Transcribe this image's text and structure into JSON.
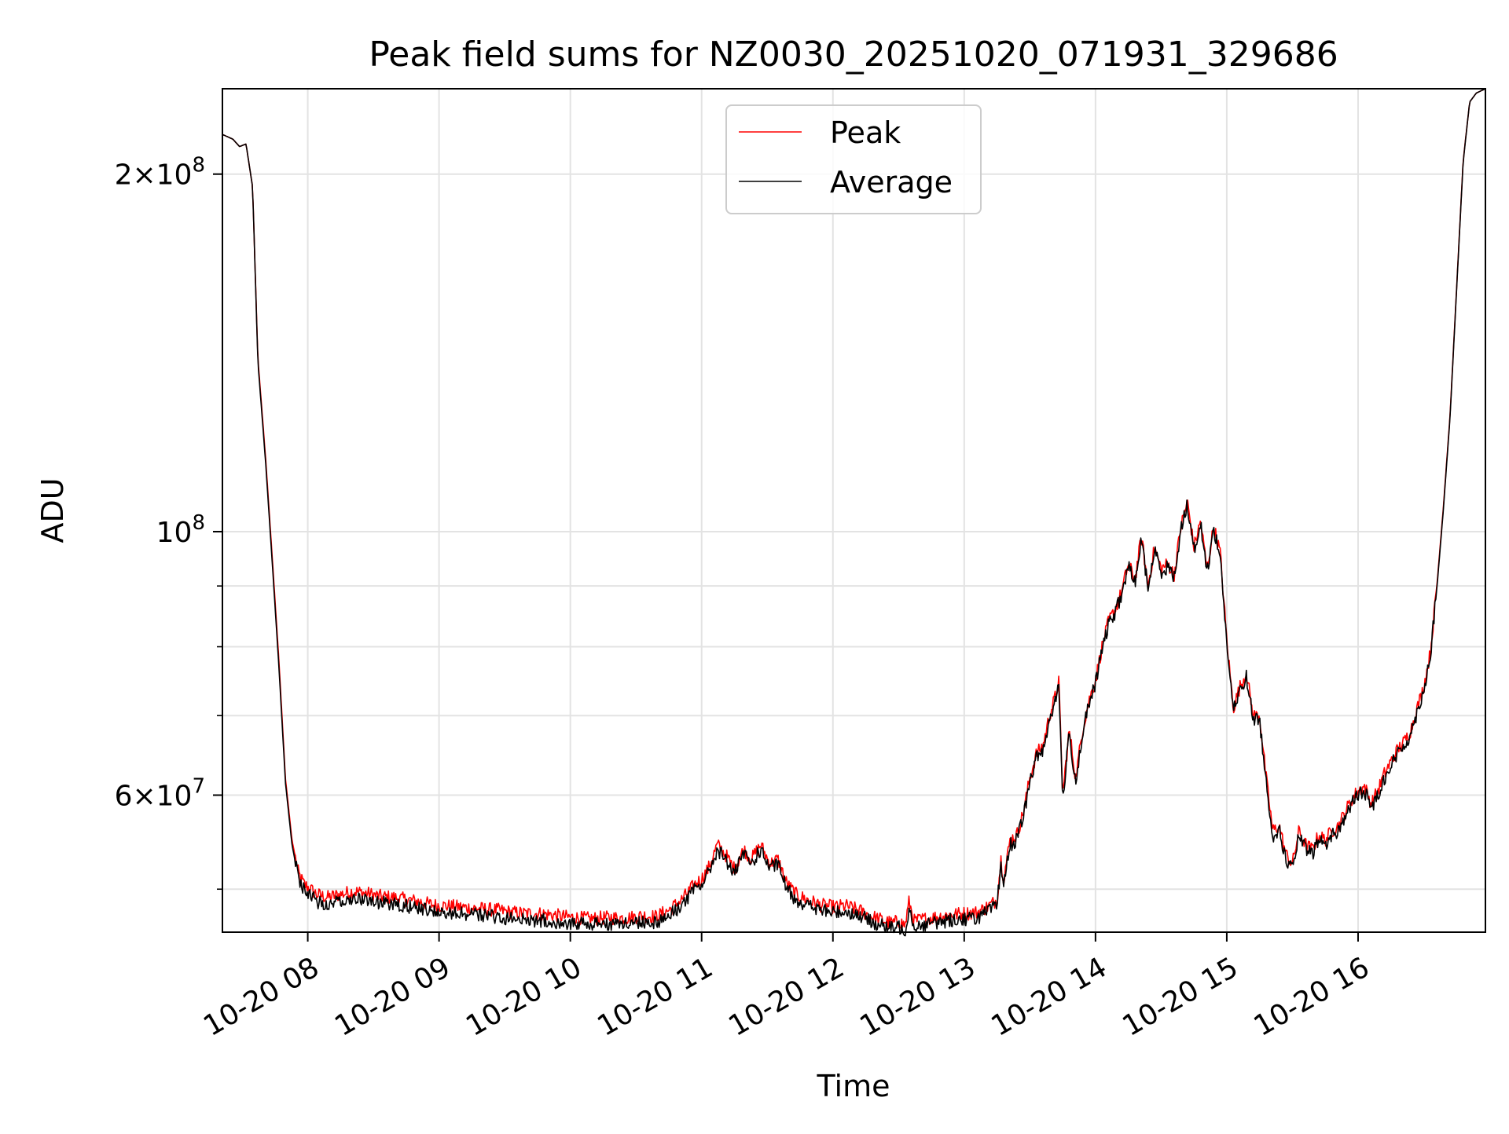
{
  "chart_data": {
    "type": "line",
    "title": "Peak field sums for NZ0030_20251020_071931_329686",
    "xlabel": "Time",
    "ylabel": "ADU",
    "yscale": "log",
    "xlim": [
      7.35,
      16.97
    ],
    "ylim": [
      46000000,
      236000000
    ],
    "grid": true,
    "legend_location": "upper center",
    "x_ticks": [
      {
        "value": 8,
        "label": "10-20 08"
      },
      {
        "value": 9,
        "label": "10-20 09"
      },
      {
        "value": 10,
        "label": "10-20 10"
      },
      {
        "value": 11,
        "label": "10-20 11"
      },
      {
        "value": 12,
        "label": "10-20 12"
      },
      {
        "value": 13,
        "label": "10-20 13"
      },
      {
        "value": 14,
        "label": "10-20 14"
      },
      {
        "value": 15,
        "label": "10-20 15"
      },
      {
        "value": 16,
        "label": "10-20 16"
      }
    ],
    "y_major_ticks": [
      {
        "value": 60000000,
        "base": "6",
        "exp": "7"
      },
      {
        "value": 100000000,
        "base": "",
        "exp": "8"
      },
      {
        "value": 200000000,
        "base": "2",
        "exp": "8"
      }
    ],
    "y_minor_ticks": [
      50000000,
      70000000,
      80000000,
      90000000
    ],
    "series": [
      {
        "name": "Peak",
        "color": "#ff0000",
        "x": [
          7.35,
          7.43,
          7.48,
          7.53,
          7.58,
          7.62,
          7.68,
          7.73,
          7.78,
          7.83,
          7.88,
          7.93,
          7.97,
          8.02,
          8.07,
          8.15,
          8.25,
          8.35,
          8.45,
          8.55,
          8.65,
          8.75,
          8.85,
          8.95,
          9.05,
          9.15,
          9.25,
          9.35,
          9.45,
          9.55,
          9.65,
          9.75,
          9.85,
          9.95,
          10.05,
          10.15,
          10.25,
          10.35,
          10.45,
          10.55,
          10.65,
          10.75,
          10.85,
          10.95,
          11.0,
          11.05,
          11.12,
          11.18,
          11.25,
          11.32,
          11.38,
          11.45,
          11.52,
          11.58,
          11.65,
          11.72,
          11.8,
          11.9,
          12.0,
          12.1,
          12.2,
          12.3,
          12.4,
          12.45,
          12.5,
          12.55,
          12.58,
          12.62,
          12.7,
          12.8,
          12.9,
          13.0,
          13.1,
          13.2,
          13.25,
          13.28,
          13.3,
          13.35,
          13.4,
          13.45,
          13.5,
          13.55,
          13.6,
          13.65,
          13.7,
          13.72,
          13.75,
          13.8,
          13.85,
          13.9,
          13.95,
          14.0,
          14.05,
          14.1,
          14.15,
          14.2,
          14.25,
          14.3,
          14.35,
          14.4,
          14.45,
          14.5,
          14.55,
          14.6,
          14.65,
          14.7,
          14.75,
          14.8,
          14.85,
          14.9,
          14.95,
          15.0,
          15.05,
          15.1,
          15.15,
          15.2,
          15.25,
          15.3,
          15.35,
          15.4,
          15.45,
          15.5,
          15.55,
          15.6,
          15.65,
          15.7,
          15.75,
          15.8,
          15.85,
          15.9,
          15.95,
          16.0,
          16.05,
          16.1,
          16.15,
          16.2,
          16.25,
          16.3,
          16.35,
          16.4,
          16.45,
          16.5,
          16.55,
          16.6,
          16.65,
          16.7,
          16.75,
          16.8,
          16.85,
          16.9,
          16.97
        ],
        "y": [
          216000000,
          214000000,
          211000000,
          212000000,
          195000000,
          140000000,
          115000000,
          95000000,
          78000000,
          62000000,
          55000000,
          51500000,
          50500000,
          50000000,
          49500000,
          49200000,
          49500000,
          49800000,
          49600000,
          49300000,
          49200000,
          49000000,
          48800000,
          48500000,
          48400000,
          48300000,
          48200000,
          48100000,
          48000000,
          47800000,
          47700000,
          47700000,
          47600000,
          47400000,
          47300000,
          47200000,
          47300000,
          47300000,
          47300000,
          47500000,
          47400000,
          48000000,
          49000000,
          50500000,
          51000000,
          52000000,
          54500000,
          53500000,
          52000000,
          54000000,
          53000000,
          54500000,
          52500000,
          53000000,
          50500000,
          49500000,
          49000000,
          48500000,
          48300000,
          48400000,
          48000000,
          47400000,
          47000000,
          46800000,
          47000000,
          46600000,
          48800000,
          47000000,
          47200000,
          47400000,
          47600000,
          47700000,
          47800000,
          48500000,
          49000000,
          53000000,
          51000000,
          55000000,
          55500000,
          58000000,
          62000000,
          65000000,
          66000000,
          70000000,
          73000000,
          75000000,
          60000000,
          68000000,
          62000000,
          68000000,
          72000000,
          75000000,
          80000000,
          84000000,
          86000000,
          89000000,
          94000000,
          91000000,
          99000000,
          90000000,
          97000000,
          93000000,
          94000000,
          92000000,
          101000000,
          106000000,
          97000000,
          102000000,
          93000000,
          101000000,
          96000000,
          81000000,
          71000000,
          74000000,
          76000000,
          70000000,
          70000000,
          62000000,
          56000000,
          56500000,
          53500000,
          52500000,
          56000000,
          54500000,
          54000000,
          55500000,
          55000000,
          56000000,
          56500000,
          58000000,
          59500000,
          60500000,
          61000000,
          59000000,
          60500000,
          62500000,
          64000000,
          65500000,
          66500000,
          68000000,
          71000000,
          74000000,
          79000000,
          90000000,
          105000000,
          125000000,
          160000000,
          205000000,
          230000000,
          234000000,
          236000000
        ]
      },
      {
        "name": "Average",
        "color": "#000000",
        "x": [
          7.35,
          7.43,
          7.48,
          7.53,
          7.58,
          7.62,
          7.68,
          7.73,
          7.78,
          7.83,
          7.88,
          7.93,
          7.97,
          8.02,
          8.07,
          8.15,
          8.25,
          8.35,
          8.45,
          8.55,
          8.65,
          8.75,
          8.85,
          8.95,
          9.05,
          9.15,
          9.25,
          9.35,
          9.45,
          9.55,
          9.65,
          9.75,
          9.85,
          9.95,
          10.05,
          10.15,
          10.25,
          10.35,
          10.45,
          10.55,
          10.65,
          10.75,
          10.85,
          10.95,
          11.0,
          11.05,
          11.12,
          11.18,
          11.25,
          11.32,
          11.38,
          11.45,
          11.52,
          11.58,
          11.65,
          11.72,
          11.8,
          11.9,
          12.0,
          12.1,
          12.2,
          12.3,
          12.4,
          12.45,
          12.5,
          12.55,
          12.58,
          12.62,
          12.7,
          12.8,
          12.9,
          13.0,
          13.1,
          13.2,
          13.25,
          13.28,
          13.3,
          13.35,
          13.4,
          13.45,
          13.5,
          13.55,
          13.6,
          13.65,
          13.7,
          13.72,
          13.75,
          13.8,
          13.85,
          13.9,
          13.95,
          14.0,
          14.05,
          14.1,
          14.15,
          14.2,
          14.25,
          14.3,
          14.35,
          14.4,
          14.45,
          14.5,
          14.55,
          14.6,
          14.65,
          14.7,
          14.75,
          14.8,
          14.85,
          14.9,
          14.95,
          15.0,
          15.05,
          15.1,
          15.15,
          15.2,
          15.25,
          15.3,
          15.35,
          15.4,
          15.45,
          15.5,
          15.55,
          15.6,
          15.65,
          15.7,
          15.75,
          15.8,
          15.85,
          15.9,
          15.95,
          16.0,
          16.05,
          16.1,
          16.15,
          16.2,
          16.25,
          16.3,
          16.35,
          16.4,
          16.45,
          16.5,
          16.55,
          16.6,
          16.65,
          16.7,
          16.75,
          16.8,
          16.85,
          16.9,
          16.97
        ],
        "y": [
          216000000,
          214000000,
          211000000,
          212000000,
          195000000,
          139000000,
          114000000,
          94000000,
          77000000,
          61500000,
          54500000,
          51000000,
          50000000,
          49300000,
          48800000,
          48600000,
          48900000,
          49200000,
          49000000,
          48700000,
          48600000,
          48400000,
          48200000,
          47900000,
          47800000,
          47700000,
          47600000,
          47500000,
          47400000,
          47200000,
          47100000,
          47100000,
          47000000,
          46900000,
          46800000,
          46700000,
          46800000,
          46800000,
          46800000,
          47000000,
          46900000,
          47500000,
          48500000,
          50000000,
          50500000,
          51500000,
          54000000,
          53000000,
          51500000,
          53500000,
          52500000,
          54000000,
          52000000,
          52500000,
          50000000,
          49000000,
          48500000,
          48000000,
          47800000,
          47900000,
          47500000,
          46900000,
          46500000,
          46300000,
          46500000,
          46100000,
          48300000,
          46500000,
          46700000,
          46900000,
          47100000,
          47200000,
          47300000,
          48000000,
          48500000,
          52500000,
          50500000,
          54500000,
          55000000,
          57500000,
          61500000,
          64500000,
          65500000,
          69500000,
          72500000,
          74500000,
          59500000,
          67500000,
          61500000,
          67500000,
          71500000,
          74500000,
          79500000,
          83500000,
          85500000,
          88500000,
          93500000,
          90500000,
          98500000,
          89500000,
          96500000,
          92500000,
          93500000,
          91500000,
          100500000,
          105500000,
          96500000,
          101500000,
          92500000,
          100500000,
          95500000,
          80500000,
          70500000,
          73500000,
          75500000,
          69500000,
          69500000,
          61500000,
          55500000,
          56000000,
          53000000,
          52000000,
          55500000,
          54000000,
          53500000,
          55000000,
          54500000,
          55500000,
          56000000,
          57500000,
          59000000,
          60000000,
          60500000,
          58500000,
          60000000,
          62000000,
          63500000,
          65000000,
          66000000,
          67500000,
          70500000,
          73500000,
          78500000,
          89500000,
          104500000,
          124500000,
          159500000,
          204500000,
          230000000,
          234000000,
          236000000
        ]
      }
    ]
  }
}
